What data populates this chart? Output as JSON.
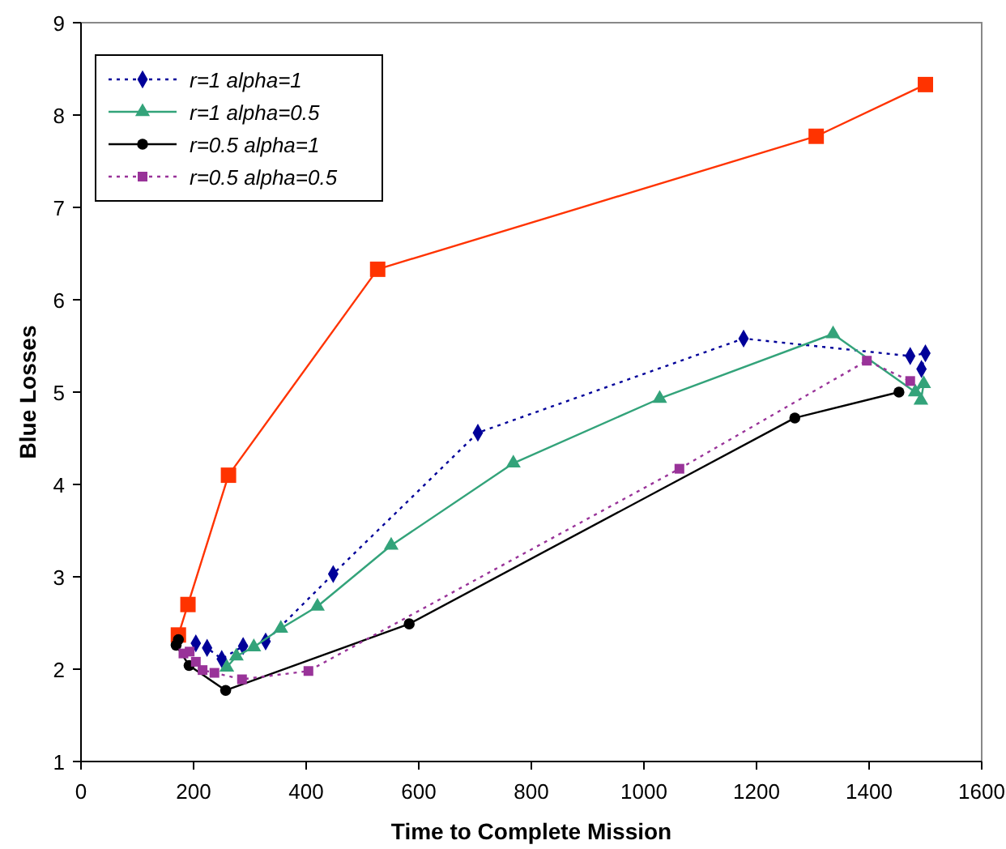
{
  "chart_data": {
    "type": "line",
    "xlabel": "Time to Complete Mission",
    "ylabel": "Blue Losses",
    "xlim": [
      0,
      1600
    ],
    "xticks": [
      0,
      200,
      400,
      600,
      800,
      1000,
      1200,
      1400,
      1600
    ],
    "ylim": [
      1,
      9
    ],
    "yticks": [
      1,
      2,
      3,
      4,
      5,
      6,
      7,
      8,
      9
    ],
    "grid": false,
    "legend": "top left",
    "series": [
      {
        "color": "#ff3300",
        "marker": "square",
        "line_style": "solid",
        "x": [
          173,
          190,
          262,
          527,
          1306,
          1500
        ],
        "values": [
          2.37,
          2.7,
          4.1,
          6.33,
          7.77,
          8.33
        ]
      },
      {
        "name": "r=1 alpha=1",
        "color": "#000099",
        "marker": "diamond",
        "line_style": "dotted",
        "x": [
          204,
          224,
          250,
          288,
          328,
          448,
          705,
          1177,
          1473,
          1500,
          1493
        ],
        "values": [
          2.28,
          2.23,
          2.11,
          2.25,
          2.3,
          3.03,
          4.56,
          5.58,
          5.39,
          5.42,
          5.25
        ]
      },
      {
        "name": "r=1 alpha=0.5",
        "color": "#33a37a",
        "marker": "triangle",
        "line_style": "solid",
        "x": [
          259,
          276,
          307,
          355,
          420,
          551,
          768,
          1028,
          1336,
          1482,
          1497,
          1492
        ],
        "values": [
          2.02,
          2.14,
          2.24,
          2.44,
          2.68,
          3.34,
          4.23,
          4.93,
          5.63,
          5.0,
          5.09,
          4.91
        ]
      },
      {
        "name": "r=0.5 alpha=1",
        "color": "#000000",
        "marker": "circle",
        "line_style": "solid",
        "x": [
          173,
          169,
          192,
          257,
          583,
          1268,
          1453
        ],
        "values": [
          2.32,
          2.26,
          2.04,
          1.77,
          2.49,
          4.72,
          5.0
        ]
      },
      {
        "name": "r=0.5 alpha=0.5",
        "color": "#993399",
        "marker": "square",
        "line_style": "dotted",
        "x": [
          182,
          193,
          204,
          216,
          237,
          286,
          404,
          1063,
          1396,
          1473
        ],
        "values": [
          2.17,
          2.19,
          2.08,
          1.99,
          1.96,
          1.89,
          1.98,
          4.17,
          5.34,
          5.12
        ]
      }
    ]
  }
}
